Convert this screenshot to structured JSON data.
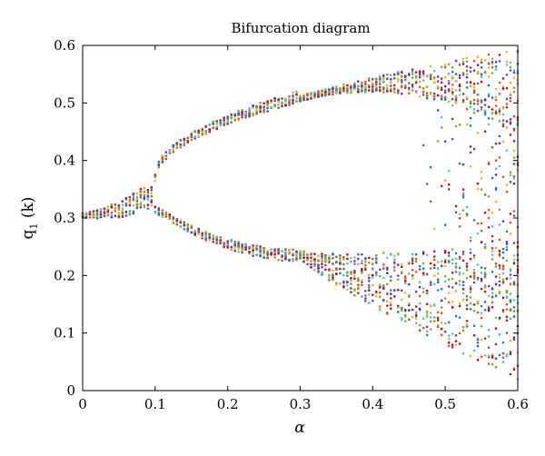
{
  "chart_data": {
    "type": "scatter",
    "title": "Bifurcation diagram",
    "xlabel": "α",
    "ylabel_main": "q",
    "ylabel_sub": "1",
    "ylabel_tail": " (k)",
    "xlim": [
      0,
      0.6
    ],
    "ylim": [
      0,
      0.6
    ],
    "xticks": [
      0,
      0.1,
      0.2,
      0.3,
      0.4,
      0.5,
      0.6
    ],
    "xtick_labels": [
      "0",
      "0.1",
      "0.2",
      "0.3",
      "0.4",
      "0.5",
      "0.6"
    ],
    "yticks": [
      0,
      0.1,
      0.2,
      0.3,
      0.4,
      0.5,
      0.6
    ],
    "ytick_labels": [
      "0",
      "0.1",
      "0.2",
      "0.3",
      "0.4",
      "0.5",
      "0.6"
    ],
    "grid": false,
    "legend": "none",
    "point_colors": [
      "#1f77b4",
      "#d95319",
      "#edb120",
      "#7e2f8e",
      "#77ac30",
      "#4dbeee",
      "#a2142f"
    ],
    "branches": {
      "single": {
        "x_range": [
          0,
          0.1
        ],
        "q_start": 0.305,
        "q_end": 0.345
      },
      "upper": {
        "x_range": [
          0.1,
          0.6
        ],
        "q_start": 0.37,
        "q_end": 0.595
      },
      "lower": {
        "x_range": [
          0.1,
          0.6
        ],
        "q_start": 0.315,
        "q_min": 0.235,
        "q_min_at": 0.3,
        "q_end": 0.09
      },
      "chaos_onset": 0.3
    }
  }
}
